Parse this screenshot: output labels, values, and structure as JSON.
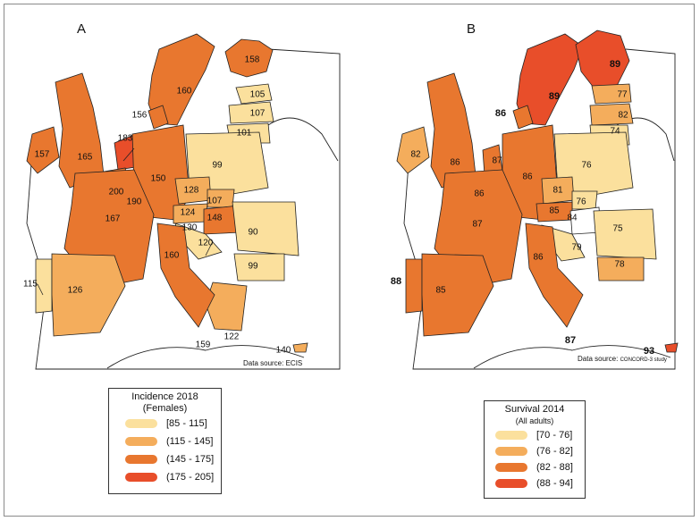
{
  "panels": {
    "a": {
      "letter": "A",
      "data_source": "Data source: ECIS",
      "legend": {
        "title": "Incidence 2018",
        "subtitle": "(Females)",
        "items": [
          {
            "label": "[85 - 115]",
            "color": "#fbe09d"
          },
          {
            "label": "(115 - 145]",
            "color": "#f4ad5c"
          },
          {
            "label": "(145 - 175]",
            "color": "#e8772f"
          },
          {
            "label": "(175 - 205]",
            "color": "#e84e2a"
          }
        ]
      },
      "labels": [
        {
          "id": "norway",
          "value": "160"
        },
        {
          "id": "finland",
          "value": "158"
        },
        {
          "id": "estonia",
          "value": "105"
        },
        {
          "id": "latvia",
          "value": "107"
        },
        {
          "id": "lithuania",
          "value": "101"
        },
        {
          "id": "denmark",
          "value": "156"
        },
        {
          "id": "ireland",
          "value": "157"
        },
        {
          "id": "uk",
          "value": "165"
        },
        {
          "id": "netherlands",
          "value": "183"
        },
        {
          "id": "belgium",
          "value": "200"
        },
        {
          "id": "luxembourg",
          "value": "190"
        },
        {
          "id": "germany",
          "value": "150"
        },
        {
          "id": "poland",
          "value": "99"
        },
        {
          "id": "czechia",
          "value": "128"
        },
        {
          "id": "slovakia",
          "value": "107"
        },
        {
          "id": "austria",
          "value": "124"
        },
        {
          "id": "hungary",
          "value": "148"
        },
        {
          "id": "slovenia",
          "value": "130"
        },
        {
          "id": "croatia",
          "value": "120"
        },
        {
          "id": "france",
          "value": "167"
        },
        {
          "id": "romania",
          "value": "90"
        },
        {
          "id": "bulgaria",
          "value": "99"
        },
        {
          "id": "italy",
          "value": "160"
        },
        {
          "id": "portugal",
          "value": "115"
        },
        {
          "id": "spain",
          "value": "126"
        },
        {
          "id": "malta",
          "value": "159"
        },
        {
          "id": "greece",
          "value": "122"
        },
        {
          "id": "cyprus",
          "value": "140"
        }
      ]
    },
    "b": {
      "letter": "B",
      "data_source": "Data source:",
      "data_source_detail": "CONCORD-3 study",
      "legend": {
        "title": "Survival 2014",
        "subtitle": "(All adults)",
        "items": [
          {
            "label": "[70 - 76]",
            "color": "#fbe09d"
          },
          {
            "label": "(76 - 82]",
            "color": "#f4ad5c"
          },
          {
            "label": "(82 - 88]",
            "color": "#e8772f"
          },
          {
            "label": "(88 - 94]",
            "color": "#e84e2a"
          }
        ]
      },
      "labels": [
        {
          "id": "norway",
          "value": "89"
        },
        {
          "id": "finland",
          "value": "89"
        },
        {
          "id": "estonia",
          "value": "77"
        },
        {
          "id": "latvia",
          "value": "82"
        },
        {
          "id": "lithuania",
          "value": "74"
        },
        {
          "id": "denmark",
          "value": "86"
        },
        {
          "id": "ireland",
          "value": "82"
        },
        {
          "id": "uk",
          "value": "86"
        },
        {
          "id": "netherlands",
          "value": "87"
        },
        {
          "id": "belgium",
          "value": "86"
        },
        {
          "id": "germany",
          "value": "86"
        },
        {
          "id": "poland",
          "value": "76"
        },
        {
          "id": "czechia",
          "value": "81"
        },
        {
          "id": "slovakia",
          "value": "76"
        },
        {
          "id": "austria",
          "value": "85"
        },
        {
          "id": "slovenia",
          "value": "84"
        },
        {
          "id": "croatia",
          "value": "79"
        },
        {
          "id": "france",
          "value": "87"
        },
        {
          "id": "romania",
          "value": "75"
        },
        {
          "id": "bulgaria",
          "value": "78"
        },
        {
          "id": "italy",
          "value": "86"
        },
        {
          "id": "portugal",
          "value": "88"
        },
        {
          "id": "spain",
          "value": "85"
        },
        {
          "id": "malta",
          "value": "87"
        },
        {
          "id": "cyprus",
          "value": "93"
        }
      ]
    }
  }
}
